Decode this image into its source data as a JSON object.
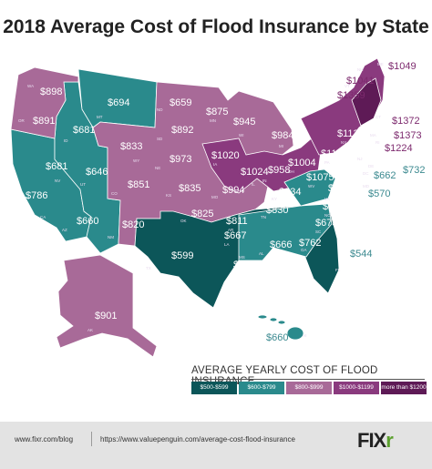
{
  "title": "2018 Average Cost of Flood Insurance by State",
  "colors": {
    "band_500_599": "#0c5659",
    "band_600_799": "#2a8a8c",
    "band_800_999": "#a86a98",
    "band_1000_1199": "#8a3a7e",
    "band_1200_plus": "#5e1a56",
    "outside_label": "#3c8a90",
    "outside_label_purple": "#7d2a6e"
  },
  "legend": {
    "title": "AVERAGE YEARLY COST OF FLOOD INSURANCE",
    "items": [
      {
        "label": "$500-$599",
        "color": "#0c5659"
      },
      {
        "label": "$600-$799",
        "color": "#2a8a8c"
      },
      {
        "label": "$800-$999",
        "color": "#a86a98"
      },
      {
        "label": "$1000-$1199",
        "color": "#8a3a7e"
      },
      {
        "label": "more than $1200",
        "color": "#5e1a56"
      }
    ]
  },
  "states": {
    "WA": "$898",
    "OR": "$891",
    "CA": "$786",
    "NV": "$681",
    "ID": "$681",
    "MT": "$694",
    "WY": "$833",
    "UT": "$646",
    "AZ": "$660",
    "CO": "$851",
    "NM": "$820",
    "ND": "$659",
    "SD": "$892",
    "NE": "$973",
    "KS": "$835",
    "OK": "$825",
    "TX": "$599",
    "MN": "$875",
    "IA": "$1020",
    "MO": "$994",
    "AR": "$811",
    "LA": "$667",
    "WI": "$945",
    "IL": "$1024",
    "MI": "$984",
    "IN": "$958",
    "OH": "$1004",
    "KY": "$934",
    "TN": "$830",
    "MS": "$716",
    "AL": "$666",
    "GA": "$762",
    "FL": "$544",
    "SC": "$673",
    "NC": "$820",
    "VA": "$737",
    "WV": "$1075",
    "PA": "$1115",
    "NY": "$1135",
    "VT": "$1359",
    "NH": "$1041",
    "ME": "$1049",
    "MA": "$1224",
    "RI": "$1373",
    "CT": "$1372",
    "NJ": "$984",
    "DE": "$732",
    "MD": "$570",
    "DC": "$662",
    "AK": "$901",
    "HI": "$660"
  },
  "footer": {
    "blog": "www.fixr.com/blog",
    "source": "https://www.valuepenguin.com/average-cost-flood-insurance",
    "logo_main": "FIX",
    "logo_accent": "r"
  }
}
